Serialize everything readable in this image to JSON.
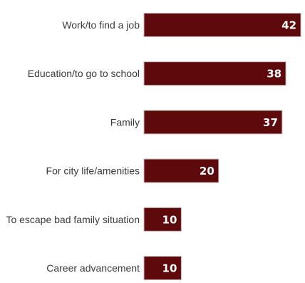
{
  "colors": {
    "bar": "#5e0a0c",
    "bar_edge": "#c9b8b8",
    "label": "#3a3a3a",
    "value_text": "#ffffff"
  },
  "chart_data": {
    "type": "bar",
    "orientation": "horizontal",
    "categories": [
      "Work/to find a job",
      "Education/to go to school",
      "Family",
      "For city life/amenities",
      "To escape bad family situation",
      "Career advancement"
    ],
    "values": [
      42,
      38,
      37,
      20,
      10,
      10
    ],
    "data_labels": [
      "42",
      "38",
      "37",
      "20",
      "10",
      "10"
    ],
    "title": "",
    "xlabel": "",
    "ylabel": "",
    "xlim": [
      0,
      42
    ],
    "grid": false,
    "legend": "none"
  }
}
